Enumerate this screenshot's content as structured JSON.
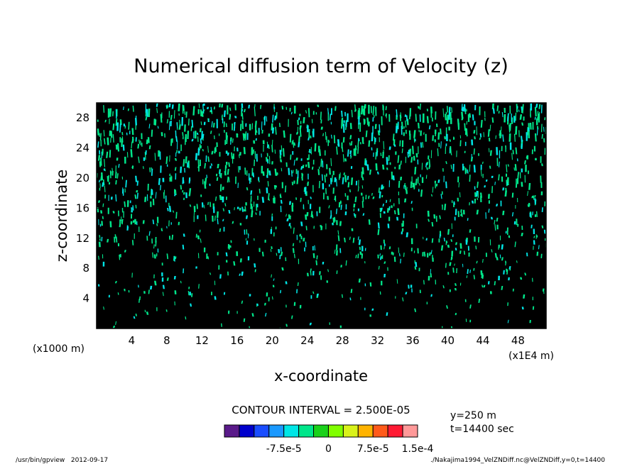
{
  "chart_data": {
    "type": "heatmap",
    "title": "Numerical diffusion term of Velocity (z)",
    "xlabel": "x-coordinate",
    "ylabel": "z-coordinate",
    "x_unit_left": "(x1000 m)",
    "x_unit_right": "(x1E4 m)",
    "xlim": [
      0,
      51.2
    ],
    "ylim": [
      0,
      30
    ],
    "xticks": [
      "4",
      "8",
      "12",
      "16",
      "20",
      "24",
      "28",
      "32",
      "36",
      "40",
      "44",
      "48"
    ],
    "xtick_values": [
      4,
      8,
      12,
      16,
      20,
      24,
      28,
      32,
      36,
      40,
      44,
      48
    ],
    "yticks": [
      "4",
      "8",
      "12",
      "16",
      "20",
      "24",
      "28"
    ],
    "ytick_values": [
      4,
      8,
      12,
      16,
      20,
      24,
      28
    ],
    "contour_interval_text": "CONTOUR INTERVAL = 2.500E-05",
    "colorbar": {
      "colors": [
        "#5a1a8a",
        "#0000cc",
        "#1a4dff",
        "#1a99ff",
        "#00e6e6",
        "#00e68a",
        "#1ad11a",
        "#80ff00",
        "#d9f21a",
        "#ffb300",
        "#ff5a1a",
        "#ff1a33",
        "#ff9999"
      ],
      "tick_labels": [
        "-7.5e-5",
        "0",
        "7.5e-5",
        "1.5e-4"
      ],
      "tick_values": [
        -7.5e-05,
        0,
        7.5e-05,
        0.00015
      ]
    },
    "field_colors": {
      "background": "#000000",
      "primary": "#00e68a",
      "secondary": "#00e6e6"
    },
    "annotations": {
      "y_slice": "y=250 m",
      "time": "t=14400 sec"
    }
  },
  "footer": {
    "left": "/usr/bin/gpview   2012-09-17",
    "right": "./Nakajima1994_VelZNDiff.nc@VelZNDiff,y=0,t=14400"
  }
}
